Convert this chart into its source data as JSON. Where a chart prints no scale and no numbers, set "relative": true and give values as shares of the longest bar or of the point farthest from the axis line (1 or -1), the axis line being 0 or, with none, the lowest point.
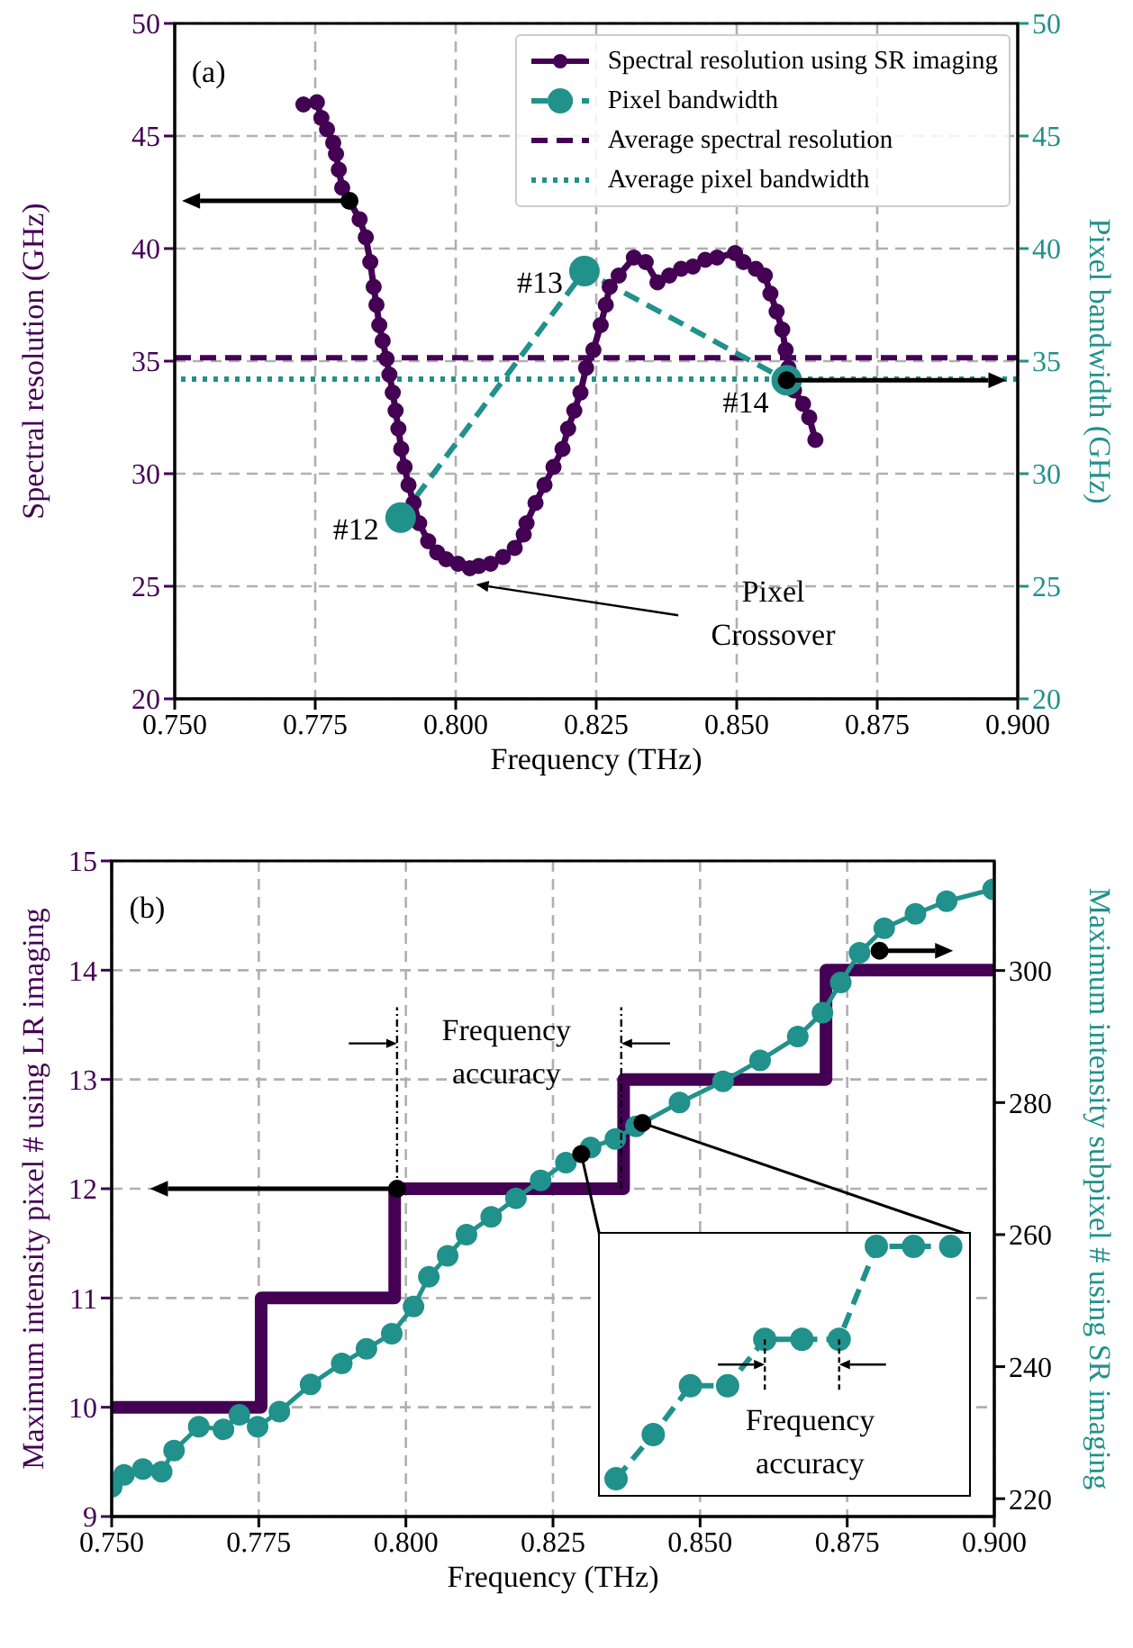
{
  "chart_data": [
    {
      "type": "line",
      "xlabel": "Frequency (THz)",
      "ylabel": "Spectral resolution (GHz)",
      "y2label": "Pixel bandwidth (GHz)",
      "xlim": [
        0.75,
        0.9
      ],
      "xticks": [
        {
          "value": 0.75,
          "label": "0.750"
        },
        {
          "value": 0.775,
          "label": "0.775"
        },
        {
          "value": 0.8,
          "label": "0.800"
        },
        {
          "value": 0.825,
          "label": "0.825"
        },
        {
          "value": 0.85,
          "label": "0.850"
        },
        {
          "value": 0.875,
          "label": "0.875"
        },
        {
          "value": 0.9,
          "label": "0.900"
        }
      ],
      "ylim": [
        20,
        50
      ],
      "yticks": [
        20,
        25,
        30,
        35,
        40,
        45,
        50
      ],
      "y2lim": [
        20,
        50
      ],
      "y2ticks": [
        20,
        25,
        30,
        35,
        40,
        45,
        50
      ],
      "grid": true,
      "legend": "top right",
      "series": [
        {
          "name": "Spectral resolution using SR imaging",
          "color": "#440154",
          "marker": "circle",
          "line_style": "solid",
          "x": [
            0.7729,
            0.7753,
            0.7761,
            0.7771,
            0.7782,
            0.7787,
            0.7792,
            0.7798,
            0.7829,
            0.784,
            0.7848,
            0.7854,
            0.7859,
            0.7864,
            0.787,
            0.7877,
            0.7882,
            0.7888,
            0.7893,
            0.7898,
            0.7903,
            0.7909,
            0.7916,
            0.7925,
            0.7935,
            0.7951,
            0.7967,
            0.7983,
            0.8004,
            0.8025,
            0.8041,
            0.8062,
            0.8084,
            0.8105,
            0.8121,
            0.8126,
            0.8142,
            0.8158,
            0.8174,
            0.819,
            0.82,
            0.8211,
            0.8222,
            0.8232,
            0.8245,
            0.8258,
            0.8267,
            0.8274,
            0.829,
            0.8317,
            0.8338,
            0.8359,
            0.838,
            0.8401,
            0.8422,
            0.8444,
            0.8465,
            0.8497,
            0.8512,
            0.8534,
            0.855,
            0.856,
            0.8571,
            0.8581,
            0.8587,
            0.8592,
            0.8602,
            0.8618,
            0.8629,
            0.864
          ],
          "values": [
            46.4,
            46.5,
            45.8,
            45.3,
            44.7,
            44.2,
            43.5,
            42.7,
            41.3,
            40.5,
            39.4,
            38.3,
            37.5,
            36.6,
            35.9,
            35.1,
            34.4,
            33.6,
            32.8,
            32.0,
            31.1,
            30.3,
            29.5,
            28.7,
            27.8,
            27.0,
            26.5,
            26.2,
            26.0,
            25.8,
            25.9,
            26.0,
            26.3,
            26.7,
            27.3,
            27.8,
            28.7,
            29.5,
            30.3,
            31.1,
            32.0,
            32.8,
            33.6,
            34.7,
            35.5,
            36.6,
            37.5,
            38.3,
            38.8,
            39.6,
            39.4,
            38.5,
            38.8,
            39.1,
            39.2,
            39.5,
            39.6,
            39.8,
            39.4,
            39.1,
            38.8,
            38.0,
            37.2,
            36.4,
            35.5,
            34.7,
            33.7,
            33.1,
            32.5,
            31.5
          ]
        },
        {
          "name": "Pixel bandwidth",
          "color": "#21918c",
          "axis": "y2",
          "marker": "circle",
          "line_style": "dashed",
          "x": [
            0.7902,
            0.8229,
            0.8589
          ],
          "values": [
            28.05,
            39.0,
            34.15
          ]
        }
      ],
      "ref_lines": [
        {
          "axis": "y",
          "value": 35.15,
          "label": "Average spectral resolution",
          "color": "#440154",
          "line_style": "dashed"
        },
        {
          "axis": "y2",
          "value": 34.2,
          "label": "Average pixel bandwidth",
          "color": "#21918c",
          "line_style": "dotted"
        }
      ],
      "annotations": [
        "(a)",
        {
          "text": "#12",
          "x": 0.7902,
          "y": 28.05
        },
        {
          "text": "#13",
          "x": 0.8229,
          "y": 39.0
        },
        {
          "text": "#14",
          "x": 0.8589,
          "y": 34.15
        },
        "Pixel Crossover"
      ]
    },
    {
      "type": "line",
      "xlabel": "Frequency (THz)",
      "ylabel": "Maximum intensity pixel # using LR imaging",
      "y2label": "Maximum intensity subpixel # using SR imaging",
      "xlim": [
        0.75,
        0.9
      ],
      "xticks": [
        {
          "value": 0.75,
          "label": "0.750"
        },
        {
          "value": 0.775,
          "label": "0.775"
        },
        {
          "value": 0.8,
          "label": "0.800"
        },
        {
          "value": 0.825,
          "label": "0.825"
        },
        {
          "value": 0.85,
          "label": "0.850"
        },
        {
          "value": 0.875,
          "label": "0.875"
        },
        {
          "value": 0.9,
          "label": "0.900"
        }
      ],
      "ylim": [
        9,
        15
      ],
      "yticks": [
        9,
        10,
        11,
        12,
        13,
        14,
        15
      ],
      "y2lim": [
        217.3,
        316.6
      ],
      "y2ticks": [
        220,
        240,
        260,
        280,
        300
      ],
      "grid": true,
      "series": [
        {
          "type": "step",
          "color": "#440154",
          "marker": "none",
          "line_style": "solid",
          "x": [
            0.75,
            0.7754,
            0.7981,
            0.837,
            0.8714,
            0.9
          ],
          "values": [
            10,
            11,
            12,
            13,
            14,
            14
          ]
        },
        {
          "color": "#21918c",
          "axis": "y2",
          "marker": "circle",
          "line_style": "solid",
          "x": [
            0.75,
            0.7521,
            0.7553,
            0.7585,
            0.7606,
            0.7648,
            0.769,
            0.7717,
            0.7748,
            0.7785,
            0.7838,
            0.7891,
            0.7933,
            0.7976,
            0.8013,
            0.8039,
            0.8071,
            0.8103,
            0.8145,
            0.8187,
            0.8229,
            0.8272,
            0.8314,
            0.8356,
            0.8391,
            0.8465,
            0.8539,
            0.8602,
            0.8666,
            0.8708,
            0.8739,
            0.8771,
            0.8813,
            0.8866,
            0.8919,
            0.8998
          ],
          "values": [
            221.8,
            223.6,
            224.5,
            224.1,
            227.3,
            230.9,
            230.5,
            232.7,
            230.9,
            233.2,
            237.3,
            240.5,
            242.7,
            245.0,
            249.1,
            253.6,
            256.8,
            260.0,
            262.7,
            265.5,
            268.2,
            270.9,
            273.2,
            274.5,
            276.4,
            280.0,
            283.2,
            286.4,
            290.0,
            293.6,
            298.2,
            302.7,
            306.4,
            308.6,
            310.5,
            312.3
          ]
        }
      ],
      "annotations": [
        "(b)",
        "Frequency accuracy"
      ]
    },
    {
      "type": "line",
      "relative": true,
      "categories": [
        null,
        null,
        null,
        null,
        null,
        null,
        null,
        null,
        null,
        null
      ],
      "series": [
        {
          "color": "#21918c",
          "marker": "circle",
          "line_style": "dashed",
          "values": [
            0,
            0.19,
            0.4,
            0.4,
            0.6,
            0.6,
            0.6,
            1,
            1,
            1
          ]
        }
      ],
      "annotations": [
        "Frequency accuracy"
      ]
    }
  ]
}
